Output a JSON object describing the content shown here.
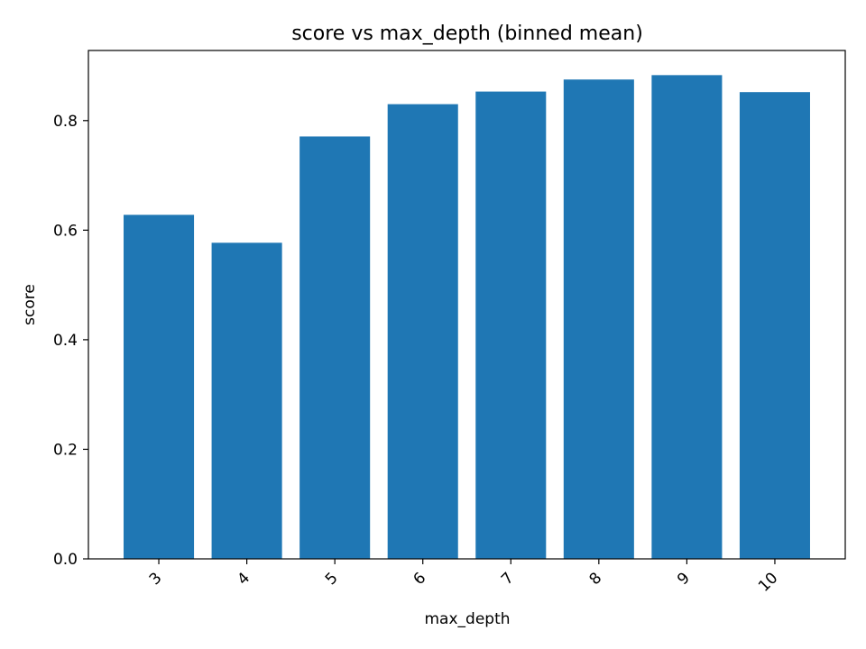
{
  "chart_data": {
    "type": "bar",
    "title": "score vs max_depth (binned mean)",
    "xlabel": "max_depth",
    "ylabel": "score",
    "categories": [
      "3",
      "4",
      "5",
      "6",
      "7",
      "8",
      "9",
      "10"
    ],
    "values": [
      0.628,
      0.577,
      0.771,
      0.83,
      0.853,
      0.875,
      0.883,
      0.852
    ],
    "ylim": [
      0,
      0.928
    ],
    "yticks": [
      0.0,
      0.2,
      0.4,
      0.6,
      0.8
    ],
    "ytick_labels": [
      "0.0",
      "0.2",
      "0.4",
      "0.6",
      "0.8"
    ],
    "bar_color": "#1f77b4",
    "grid": false,
    "legend": false
  }
}
